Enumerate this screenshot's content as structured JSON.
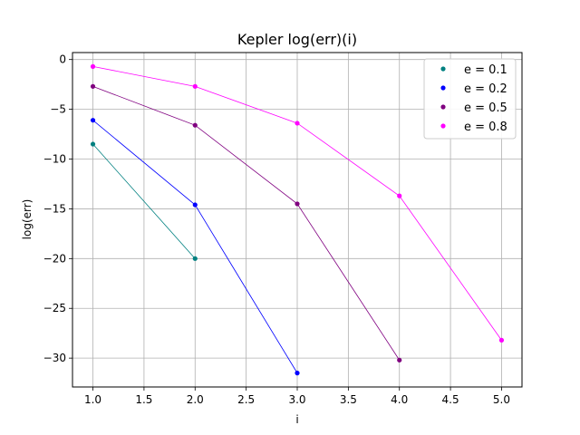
{
  "chart_data": {
    "type": "scatter",
    "title": "Kepler log(err)(i)",
    "xlabel": "i",
    "ylabel": "log(err)",
    "xlim": [
      0.8,
      5.2
    ],
    "ylim": [
      -32.9,
      0.7
    ],
    "xticks": [
      1.0,
      1.5,
      2.0,
      2.5,
      3.0,
      3.5,
      4.0,
      4.5,
      5.0
    ],
    "xtick_labels": [
      "1.0",
      "1.5",
      "2.0",
      "2.5",
      "3.0",
      "3.5",
      "4.0",
      "4.5",
      "5.0"
    ],
    "yticks": [
      0,
      -5,
      -10,
      -15,
      -20,
      -25,
      -30
    ],
    "ytick_labels": [
      "0",
      "−5",
      "−10",
      "−15",
      "−20",
      "−25",
      "−30"
    ],
    "grid": true,
    "legend_position": "top-right",
    "series": [
      {
        "name": "e = 0.1",
        "color": "#008080",
        "x": [
          1,
          2
        ],
        "y": [
          -8.5,
          -20.0
        ]
      },
      {
        "name": "e = 0.2",
        "color": "#0000ff",
        "x": [
          1,
          2,
          3
        ],
        "y": [
          -6.1,
          -14.6,
          -31.5
        ]
      },
      {
        "name": "e = 0.5",
        "color": "#800080",
        "x": [
          1,
          2,
          3,
          4
        ],
        "y": [
          -2.7,
          -6.6,
          -14.5,
          -30.2
        ]
      },
      {
        "name": "e = 0.8",
        "color": "#ff00ff",
        "x": [
          1,
          2,
          3,
          4,
          5
        ],
        "y": [
          -0.7,
          -2.7,
          -6.4,
          -13.7,
          -28.2
        ]
      }
    ]
  }
}
